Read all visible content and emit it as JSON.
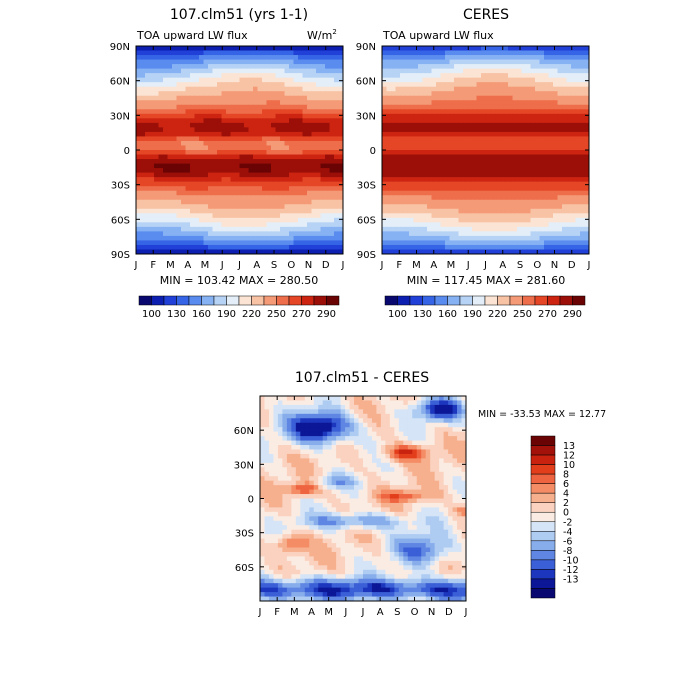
{
  "chart_data": [
    {
      "type": "heatmap",
      "title": "107.clm51 (yrs 1-1)",
      "subtitle": "TOA upward LW flux",
      "units_prefix": "W/m",
      "units_exp": "2",
      "stats": "MIN = 103.42  MAX = 280.50",
      "x_tick_labels": [
        "J",
        "F",
        "M",
        "A",
        "M",
        "J",
        "J",
        "A",
        "S",
        "O",
        "N",
        "D",
        "J"
      ],
      "y_tick_labels": [
        "90N",
        "60N",
        "30N",
        "0",
        "30S",
        "60S",
        "90S"
      ],
      "y_range": [
        -90,
        90
      ],
      "colorbar_labels": [
        "100",
        "130",
        "160",
        "190",
        "220",
        "250",
        "270",
        "290"
      ],
      "field": "lw_model"
    },
    {
      "type": "heatmap",
      "title": "CERES",
      "subtitle": "TOA upward LW flux",
      "stats": "MIN = 117.45  MAX = 281.60",
      "x_tick_labels": [
        "J",
        "F",
        "M",
        "A",
        "M",
        "J",
        "J",
        "A",
        "S",
        "O",
        "N",
        "D",
        "J"
      ],
      "y_tick_labels": [
        "90N",
        "60N",
        "30N",
        "0",
        "30S",
        "60S",
        "90S"
      ],
      "y_range": [
        -90,
        90
      ],
      "colorbar_labels": [
        "100",
        "130",
        "160",
        "190",
        "220",
        "250",
        "270",
        "290"
      ],
      "field": "lw_obs"
    },
    {
      "type": "heatmap",
      "title": "107.clm51 - CERES",
      "stats": "MIN = -33.53  MAX =  12.77",
      "x_tick_labels": [
        "J",
        "F",
        "M",
        "A",
        "M",
        "J",
        "J",
        "A",
        "S",
        "O",
        "N",
        "D",
        "J"
      ],
      "y_tick_labels": [
        "60N",
        "30N",
        "0",
        "30S",
        "60S"
      ],
      "y_range": [
        -90,
        90
      ],
      "colorbar_labels": [
        "13",
        "12",
        "10",
        "8",
        "6",
        "4",
        "2",
        "0",
        "-2",
        "-4",
        "-6",
        "-8",
        "-10",
        "-12",
        "-13"
      ],
      "field": "diff"
    }
  ],
  "colors": {
    "lw_scale": [
      "#08086e",
      "#0c1fb0",
      "#2040d8",
      "#3565e6",
      "#5a8cef",
      "#86b2f4",
      "#b6d3f6",
      "#e3eef8",
      "#fbe4d4",
      "#f8c2a4",
      "#f49a76",
      "#ee6d4a",
      "#e54626",
      "#cc2411",
      "#9c0f08",
      "#6a0404"
    ],
    "diff_scale": [
      "#6a0404",
      "#a2110a",
      "#c9220f",
      "#e33e1c",
      "#ef6440",
      "#f48d66",
      "#f7b08e",
      "#fad2bf",
      "#fbece3",
      "#d5e5f7",
      "#aecbf2",
      "#88adeb",
      "#5f86e2",
      "#3a5fd6",
      "#1c36bd",
      "#0b1796",
      "#080870"
    ]
  }
}
